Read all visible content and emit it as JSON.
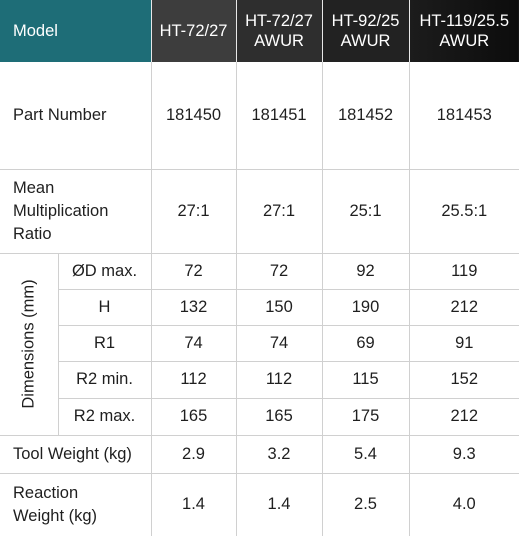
{
  "header": {
    "model_label": "Model",
    "models": [
      "HT-72/27",
      "HT-72/27 AWUR",
      "HT-92/25 AWUR",
      "HT-119/25.5 AWUR"
    ]
  },
  "rows": {
    "part_number": {
      "label": "Part Number",
      "values": [
        "181450",
        "181451",
        "181452",
        "181453"
      ]
    },
    "ratio": {
      "label": "Mean Multiplication Ratio",
      "values": [
        "27:1",
        "27:1",
        "25:1",
        "25.5:1"
      ]
    },
    "dimensions_label": "Dimensions (mm)",
    "dimensions": [
      {
        "label": "ØD max.",
        "values": [
          "72",
          "72",
          "92",
          "119"
        ]
      },
      {
        "label": "H",
        "values": [
          "132",
          "150",
          "190",
          "212"
        ]
      },
      {
        "label": "R1",
        "values": [
          "74",
          "74",
          "69",
          "91"
        ]
      },
      {
        "label": "R2 min.",
        "values": [
          "112",
          "112",
          "115",
          "152"
        ]
      },
      {
        "label": "R2 max.",
        "values": [
          "165",
          "165",
          "175",
          "212"
        ]
      }
    ],
    "tool_weight": {
      "label": "Tool Weight (kg)",
      "values": [
        "2.9",
        "3.2",
        "5.4",
        "9.3"
      ]
    },
    "reaction_weight": {
      "label": "Reaction Weight (kg)",
      "values": [
        "1.4",
        "1.4",
        "2.5",
        "4.0"
      ]
    }
  }
}
